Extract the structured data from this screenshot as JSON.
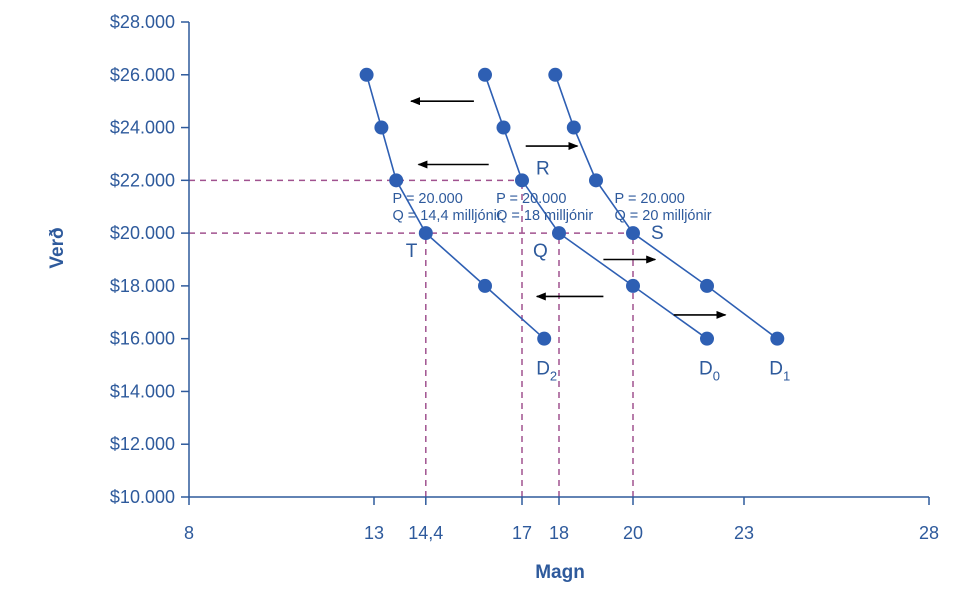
{
  "chart_data": {
    "type": "line",
    "xlabel": "Magn",
    "ylabel": "Verð",
    "xlim": [
      8,
      28
    ],
    "ylim": [
      10000,
      28000
    ],
    "x_ticks": [
      8,
      13,
      14.4,
      17,
      18,
      20,
      23,
      28
    ],
    "x_tick_labels": [
      "8",
      "13",
      "14,4",
      "17",
      "18",
      "20",
      "23",
      "28"
    ],
    "y_ticks": [
      10000,
      12000,
      14000,
      16000,
      18000,
      20000,
      22000,
      24000,
      26000,
      28000
    ],
    "y_tick_labels": [
      "$10.000",
      "$12.000",
      "$14.000",
      "$16.000",
      "$18.000",
      "$20.000",
      "$22.000",
      "$24.000",
      "$26.000",
      "$28.000"
    ],
    "grid": false,
    "series": [
      {
        "name": "D2",
        "label_main": "D",
        "label_sub": "2",
        "color": "#2e5fb3",
        "points": [
          [
            12.8,
            26000
          ],
          [
            13.2,
            24000
          ],
          [
            13.6,
            22000
          ],
          [
            14.4,
            20000
          ],
          [
            16,
            18000
          ],
          [
            17.6,
            16000
          ]
        ]
      },
      {
        "name": "D0",
        "label_main": "D",
        "label_sub": "0",
        "color": "#2e5fb3",
        "points": [
          [
            16,
            26000
          ],
          [
            16.5,
            24000
          ],
          [
            17,
            22000
          ],
          [
            18,
            20000
          ],
          [
            20,
            18000
          ],
          [
            22,
            16000
          ]
        ]
      },
      {
        "name": "D1",
        "label_main": "D",
        "label_sub": "1",
        "color": "#2e5fb3",
        "points": [
          [
            17.9,
            26000
          ],
          [
            18.4,
            24000
          ],
          [
            19,
            22000
          ],
          [
            20,
            20000
          ],
          [
            22,
            18000
          ],
          [
            23.9,
            16000
          ]
        ]
      }
    ],
    "reference_lines": [
      {
        "kind": "horizontal",
        "y": 22000,
        "x_from": 8,
        "x_to": 17,
        "color": "#a0528f"
      },
      {
        "kind": "horizontal",
        "y": 20000,
        "x_from": 8,
        "x_to": 20,
        "color": "#a0528f"
      },
      {
        "kind": "vertical",
        "x": 14.4,
        "y_from": 10000,
        "y_to": 20000,
        "color": "#a0528f"
      },
      {
        "kind": "vertical",
        "x": 17,
        "y_from": 10000,
        "y_to": 22000,
        "color": "#a0528f"
      },
      {
        "kind": "vertical",
        "x": 18,
        "y_from": 10000,
        "y_to": 20000,
        "color": "#a0528f"
      },
      {
        "kind": "vertical",
        "x": 20,
        "y_from": 10000,
        "y_to": 20000,
        "color": "#a0528f"
      }
    ],
    "point_labels": [
      {
        "text": "T",
        "x": 14.4,
        "y": 20000
      },
      {
        "text": "Q",
        "x": 18,
        "y": 20000
      },
      {
        "text": "S",
        "x": 20,
        "y": 20000
      },
      {
        "text": "R",
        "x": 17,
        "y": 22000
      }
    ],
    "annotations": [
      {
        "line1": "P = 20.000",
        "line2": "Q = 14,4 milljónir",
        "x": 13.5,
        "y": 21150
      },
      {
        "line1": "P = 20.000",
        "line2": "Q = 18 milljónir",
        "x": 16.3,
        "y": 21150
      },
      {
        "line1": "P = 20.000",
        "line2": "Q = 20 milljónir",
        "x": 19.5,
        "y": 21150
      }
    ],
    "arrows": [
      {
        "direction": "left",
        "x_from": 15.7,
        "x_to": 14,
        "y": 25000
      },
      {
        "direction": "left",
        "x_from": 16.1,
        "x_to": 14.2,
        "y": 22600
      },
      {
        "direction": "right",
        "x_from": 17.1,
        "x_to": 18.5,
        "y": 23300
      },
      {
        "direction": "right",
        "x_from": 19.2,
        "x_to": 20.6,
        "y": 19000
      },
      {
        "direction": "left",
        "x_from": 19.2,
        "x_to": 17.4,
        "y": 17600
      },
      {
        "direction": "right",
        "x_from": 21.1,
        "x_to": 22.5,
        "y": 16900
      }
    ],
    "colors": {
      "axis": "#2e5a9c",
      "point": "#2e5fb3",
      "curve": "#2e5fb3",
      "guide": "#a0528f",
      "arrow": "#000000",
      "text": "#2e5a9c"
    }
  }
}
